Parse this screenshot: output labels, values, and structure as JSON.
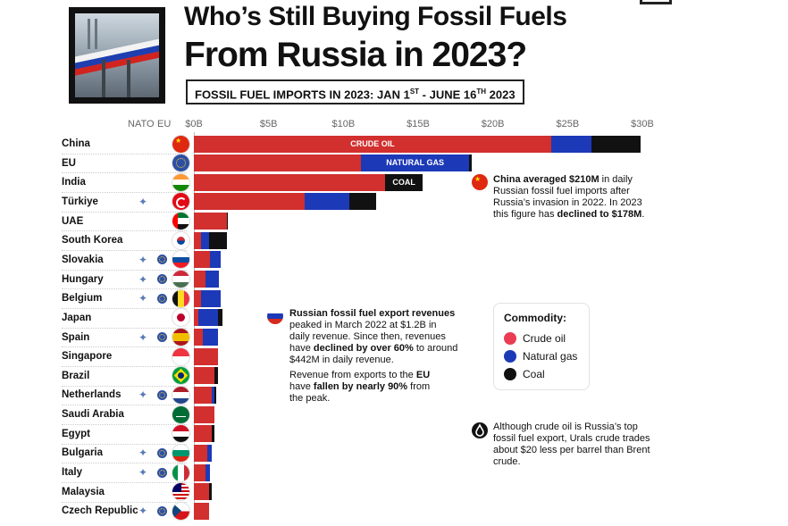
{
  "header": {
    "title_line1": "Who’s Still Buying Fossil Fuels",
    "title_line2": "From Russia in 2023?",
    "subtitle_main": "FOSSIL FUEL IMPORTS IN 2023: JAN 1",
    "subtitle_sup1": "ST",
    "subtitle_mid": " - JUNE 16",
    "subtitle_sup2": "TH",
    "subtitle_end": " 2023"
  },
  "columns": {
    "nato": "NATO",
    "eu": "EU"
  },
  "colors": {
    "crude": "#d22f2f",
    "gas": "#1c39b8",
    "coal": "#111111"
  },
  "chart_data": {
    "type": "bar",
    "orientation": "horizontal",
    "stacked": true,
    "unit": "USD billions",
    "x_ticks": [
      "$0B",
      "$5B",
      "$10B",
      "$15B",
      "$20B",
      "$25B",
      "$30B"
    ],
    "xlim": [
      0,
      30
    ],
    "legend_position": "right",
    "categories": [
      "China",
      "EU",
      "India",
      "Türkiye",
      "UAE",
      "South Korea",
      "Slovakia",
      "Hungary",
      "Belgium",
      "Japan",
      "Spain",
      "Singapore",
      "Brazil",
      "Netherlands",
      "Saudi Arabia",
      "Egypt",
      "Bulgaria",
      "Italy",
      "Malaysia",
      "Czech Republic"
    ],
    "nato": [
      false,
      false,
      false,
      true,
      false,
      false,
      true,
      true,
      true,
      false,
      true,
      false,
      false,
      true,
      false,
      false,
      true,
      true,
      false,
      true
    ],
    "eu": [
      false,
      false,
      false,
      false,
      false,
      false,
      true,
      true,
      true,
      false,
      true,
      false,
      false,
      true,
      false,
      false,
      true,
      true,
      false,
      true
    ],
    "flags": [
      "china",
      "eu",
      "india",
      "turkiye",
      "uae",
      "south-korea",
      "slovakia",
      "hungary",
      "belgium",
      "japan",
      "spain",
      "singapore",
      "brazil",
      "netherlands",
      "saudi-arabia",
      "egypt",
      "bulgaria",
      "italy",
      "malaysia",
      "czech-republic"
    ],
    "series": [
      {
        "name": "Crude oil",
        "key": "crude",
        "values": [
          23.9,
          11.2,
          12.8,
          7.4,
          2.2,
          0.5,
          1.1,
          0.8,
          0.5,
          0.3,
          0.6,
          1.6,
          1.4,
          1.2,
          1.4,
          1.2,
          0.9,
          0.8,
          1.0,
          1.0
        ]
      },
      {
        "name": "Natural gas",
        "key": "gas",
        "values": [
          2.7,
          7.2,
          0.0,
          3.0,
          0.0,
          0.5,
          0.7,
          0.9,
          1.3,
          1.3,
          1.0,
          0.0,
          0.0,
          0.2,
          0.0,
          0.0,
          0.3,
          0.3,
          0.0,
          0.0
        ]
      },
      {
        "name": "Coal",
        "key": "coal",
        "values": [
          3.3,
          0.2,
          2.5,
          1.8,
          0.1,
          1.2,
          0.0,
          0.0,
          0.0,
          0.3,
          0.0,
          0.0,
          0.2,
          0.1,
          0.0,
          0.2,
          0.0,
          0.0,
          0.2,
          0.0
        ]
      }
    ],
    "bar_labels": {
      "crude": "CRUDE OIL",
      "gas": "NATURAL GAS",
      "coal": "COAL"
    }
  },
  "annotations": {
    "china": [
      {
        "b": "China averaged $210M",
        "t": " in daily Russian fossil fuel imports after Russia’s invasion in 2022. In 2023 this figure has "
      },
      {
        "b": "declined to $178M",
        "t": "."
      }
    ],
    "russia_p1": [
      {
        "b": "Russian fossil fuel export revenues",
        "t": " peaked in March 2022 at $1.2B in daily revenue. Since then, revenues have "
      },
      {
        "b": "declined by over 60%",
        "t": " to around $442M in daily revenue."
      }
    ],
    "russia_p2": [
      {
        "b": "",
        "t": "Revenue from exports to the "
      },
      {
        "b": "EU",
        "t": " have "
      },
      {
        "b": "fallen by nearly 90%",
        "t": " from the peak."
      }
    ],
    "urals": "Although crude oil is Russia’s top fossil fuel export, Urals crude trades about $20 less per barrel than Brent crude."
  },
  "legend": {
    "title": "Commodity:",
    "items": [
      {
        "label": "Crude oil",
        "color": "#ea3c52"
      },
      {
        "label": "Natural gas",
        "color": "#1c39b8"
      },
      {
        "label": "Coal",
        "color": "#111111"
      }
    ]
  }
}
